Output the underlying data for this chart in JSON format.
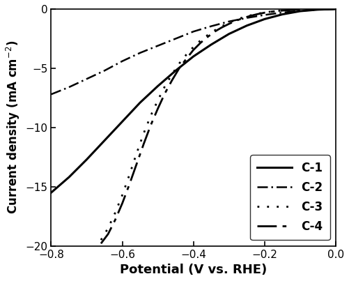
{
  "xlabel": "Potential (V vs. RHE)",
  "ylabel": "Current density (mA cm$^{-2}$)",
  "xlim": [
    -0.8,
    0.0
  ],
  "ylim": [
    -20,
    0
  ],
  "xticks": [
    -0.8,
    -0.6,
    -0.4,
    -0.2,
    0.0
  ],
  "yticks": [
    0,
    -5,
    -10,
    -15,
    -20
  ],
  "background_color": "#ffffff",
  "line_color": "#000000",
  "curves": {
    "C1": {
      "label": "C-1",
      "linestyle": "solid",
      "linewidth": 2.2,
      "x": [
        -0.8,
        -0.75,
        -0.7,
        -0.65,
        -0.6,
        -0.55,
        -0.5,
        -0.45,
        -0.4,
        -0.35,
        -0.3,
        -0.25,
        -0.2,
        -0.15,
        -0.1,
        -0.05,
        0.0
      ],
      "y": [
        -15.5,
        -14.2,
        -12.7,
        -11.1,
        -9.5,
        -7.9,
        -6.5,
        -5.2,
        -4.0,
        -3.0,
        -2.1,
        -1.4,
        -0.85,
        -0.45,
        -0.18,
        -0.05,
        0.0
      ]
    },
    "C2": {
      "label": "C-2",
      "linestyle": "dashdot",
      "linewidth": 1.8,
      "dash_pattern": [
        6,
        2,
        1,
        2
      ],
      "x": [
        -0.8,
        -0.75,
        -0.7,
        -0.65,
        -0.6,
        -0.55,
        -0.5,
        -0.45,
        -0.4,
        -0.35,
        -0.3,
        -0.25,
        -0.2,
        -0.15,
        -0.1,
        -0.05,
        0.0
      ],
      "y": [
        -7.2,
        -6.6,
        -5.9,
        -5.2,
        -4.4,
        -3.7,
        -3.1,
        -2.5,
        -1.9,
        -1.45,
        -1.05,
        -0.75,
        -0.5,
        -0.3,
        -0.15,
        -0.05,
        0.0
      ]
    },
    "C3": {
      "label": "C-3",
      "linestyle": "dotted",
      "linewidth": 2.0,
      "dot_pattern": [
        1,
        4
      ],
      "x": [
        -0.66,
        -0.64,
        -0.62,
        -0.6,
        -0.58,
        -0.56,
        -0.54,
        -0.52,
        -0.5,
        -0.48,
        -0.46,
        -0.44,
        -0.42,
        -0.4,
        -0.38,
        -0.36,
        -0.34,
        -0.32,
        -0.3,
        -0.28,
        -0.26,
        -0.24,
        -0.22,
        -0.2,
        -0.18,
        -0.16,
        -0.14,
        -0.12,
        -0.1,
        -0.08,
        -0.06,
        -0.04,
        -0.02,
        0.0
      ],
      "y": [
        -19.5,
        -18.5,
        -17.2,
        -15.7,
        -14.0,
        -12.2,
        -10.5,
        -9.0,
        -7.7,
        -6.5,
        -5.5,
        -4.6,
        -3.85,
        -3.2,
        -2.65,
        -2.2,
        -1.8,
        -1.45,
        -1.15,
        -0.9,
        -0.7,
        -0.54,
        -0.4,
        -0.29,
        -0.21,
        -0.15,
        -0.1,
        -0.07,
        -0.045,
        -0.028,
        -0.016,
        -0.008,
        -0.003,
        0.0
      ]
    },
    "C4": {
      "label": "C-4",
      "linewidth": 2.0,
      "long_dash_pattern": [
        10,
        3,
        2,
        3
      ],
      "x": [
        -0.66,
        -0.64,
        -0.62,
        -0.6,
        -0.58,
        -0.56,
        -0.54,
        -0.52,
        -0.5,
        -0.48,
        -0.46,
        -0.44,
        -0.42,
        -0.4,
        -0.38,
        -0.36,
        -0.34,
        -0.32,
        -0.3,
        -0.28,
        -0.26,
        -0.24,
        -0.22,
        -0.2,
        -0.18,
        -0.16,
        -0.14,
        -0.12,
        -0.1,
        -0.08,
        -0.06,
        -0.04,
        -0.02,
        0.0
      ],
      "y": [
        -19.8,
        -19.0,
        -17.8,
        -16.4,
        -14.8,
        -13.1,
        -11.4,
        -9.8,
        -8.4,
        -7.1,
        -6.0,
        -5.0,
        -4.2,
        -3.45,
        -2.85,
        -2.35,
        -1.9,
        -1.55,
        -1.25,
        -0.98,
        -0.76,
        -0.58,
        -0.43,
        -0.31,
        -0.22,
        -0.155,
        -0.105,
        -0.068,
        -0.042,
        -0.025,
        -0.013,
        -0.006,
        -0.002,
        0.0
      ]
    }
  },
  "legend": {
    "loc": "lower right",
    "fontsize": 12,
    "frameon": true,
    "handlelength": 3.0,
    "labelspacing": 0.6,
    "borderpad": 0.6
  }
}
